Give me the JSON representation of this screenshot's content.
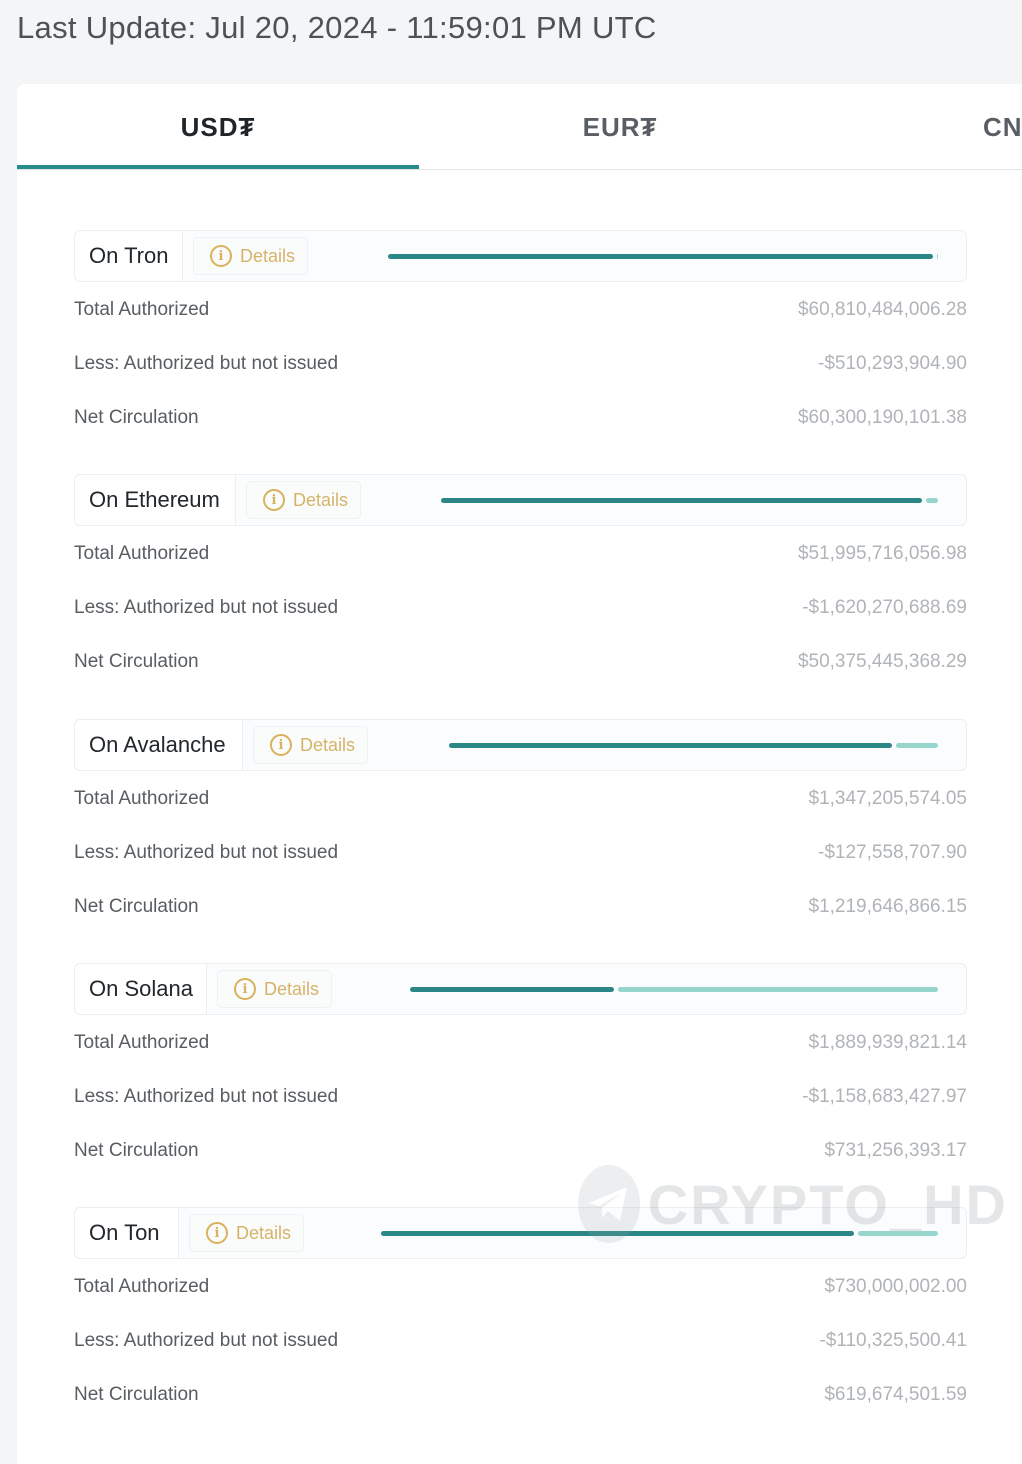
{
  "header": {
    "last_update": "Last Update: Jul 20, 2024 - 11:59:01 PM UTC"
  },
  "tabs": [
    {
      "label": "USD₮",
      "active": true
    },
    {
      "label": "EUR₮",
      "active": false
    },
    {
      "label": "CN",
      "active": false
    }
  ],
  "details_label": "Details",
  "colors": {
    "accent": "#2a8c89",
    "issued_bar": "#2a8785",
    "unissued_bar": "#97d6cc",
    "details_gold": "#d7b36a"
  },
  "watermark": "CRYPTO_HD",
  "chains": [
    {
      "name": "On Tron",
      "issued_fraction": 0.9916,
      "rows": [
        {
          "label": "Total Authorized",
          "value": "$60,810,484,006.28"
        },
        {
          "label": "Less: Authorized but not issued",
          "value": "-$510,293,904.90"
        },
        {
          "label": "Net Circulation",
          "value": "$60,300,190,101.38"
        }
      ]
    },
    {
      "name": "On Ethereum",
      "issued_fraction": 0.9688,
      "rows": [
        {
          "label": "Total Authorized",
          "value": "$51,995,716,056.98"
        },
        {
          "label": "Less: Authorized but not issued",
          "value": "-$1,620,270,688.69"
        },
        {
          "label": "Net Circulation",
          "value": "$50,375,445,368.29"
        }
      ]
    },
    {
      "name": "On Avalanche",
      "issued_fraction": 0.9053,
      "rows": [
        {
          "label": "Total Authorized",
          "value": "$1,347,205,574.05"
        },
        {
          "label": "Less: Authorized but not issued",
          "value": "-$127,558,707.90"
        },
        {
          "label": "Net Circulation",
          "value": "$1,219,646,866.15"
        }
      ]
    },
    {
      "name": "On Solana",
      "issued_fraction": 0.3869,
      "rows": [
        {
          "label": "Total Authorized",
          "value": "$1,889,939,821.14"
        },
        {
          "label": "Less: Authorized but not issued",
          "value": "-$1,158,683,427.97"
        },
        {
          "label": "Net Circulation",
          "value": "$731,256,393.17"
        }
      ]
    },
    {
      "name": "On Ton",
      "issued_fraction": 0.8489,
      "rows": [
        {
          "label": "Total Authorized",
          "value": "$730,000,002.00"
        },
        {
          "label": "Less: Authorized but not issued",
          "value": "-$110,325,500.41"
        },
        {
          "label": "Net Circulation",
          "value": "$619,674,501.59"
        }
      ]
    }
  ]
}
